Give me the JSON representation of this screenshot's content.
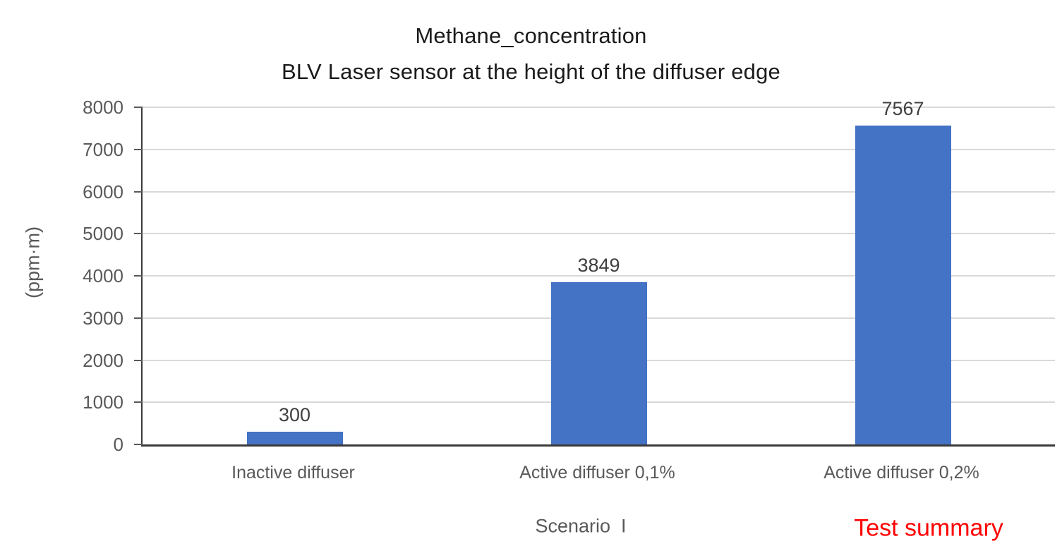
{
  "chart_data": {
    "type": "bar",
    "title": "Methane_concentration",
    "subtitle": "BLV Laser sensor at the height of the diffuser edge",
    "ylabel": "(ppm·m)",
    "xlabel": "",
    "categories": [
      "Inactive diffuser",
      "Active diffuser 0,1%",
      "Active diffuser 0,2%"
    ],
    "values": [
      300,
      3849,
      7567
    ],
    "data_labels": [
      "300",
      "3849",
      "7567"
    ],
    "ylim": [
      0,
      8000
    ],
    "yticks": [
      0,
      1000,
      2000,
      3000,
      4000,
      5000,
      6000,
      7000,
      8000
    ],
    "grid": true,
    "legend": "none",
    "annotations": [
      {
        "text": "Scenario  I",
        "color": "#595959"
      },
      {
        "text": "Test summary",
        "color": "#ff0000"
      }
    ],
    "colors": {
      "bar": "#4472c4",
      "gridline": "#d9d9d9",
      "axis": "#3a3a3a",
      "tick_label": "#595959",
      "data_label": "#404040",
      "title": "#1a1a1a",
      "annotation_red": "#ff0000"
    }
  }
}
